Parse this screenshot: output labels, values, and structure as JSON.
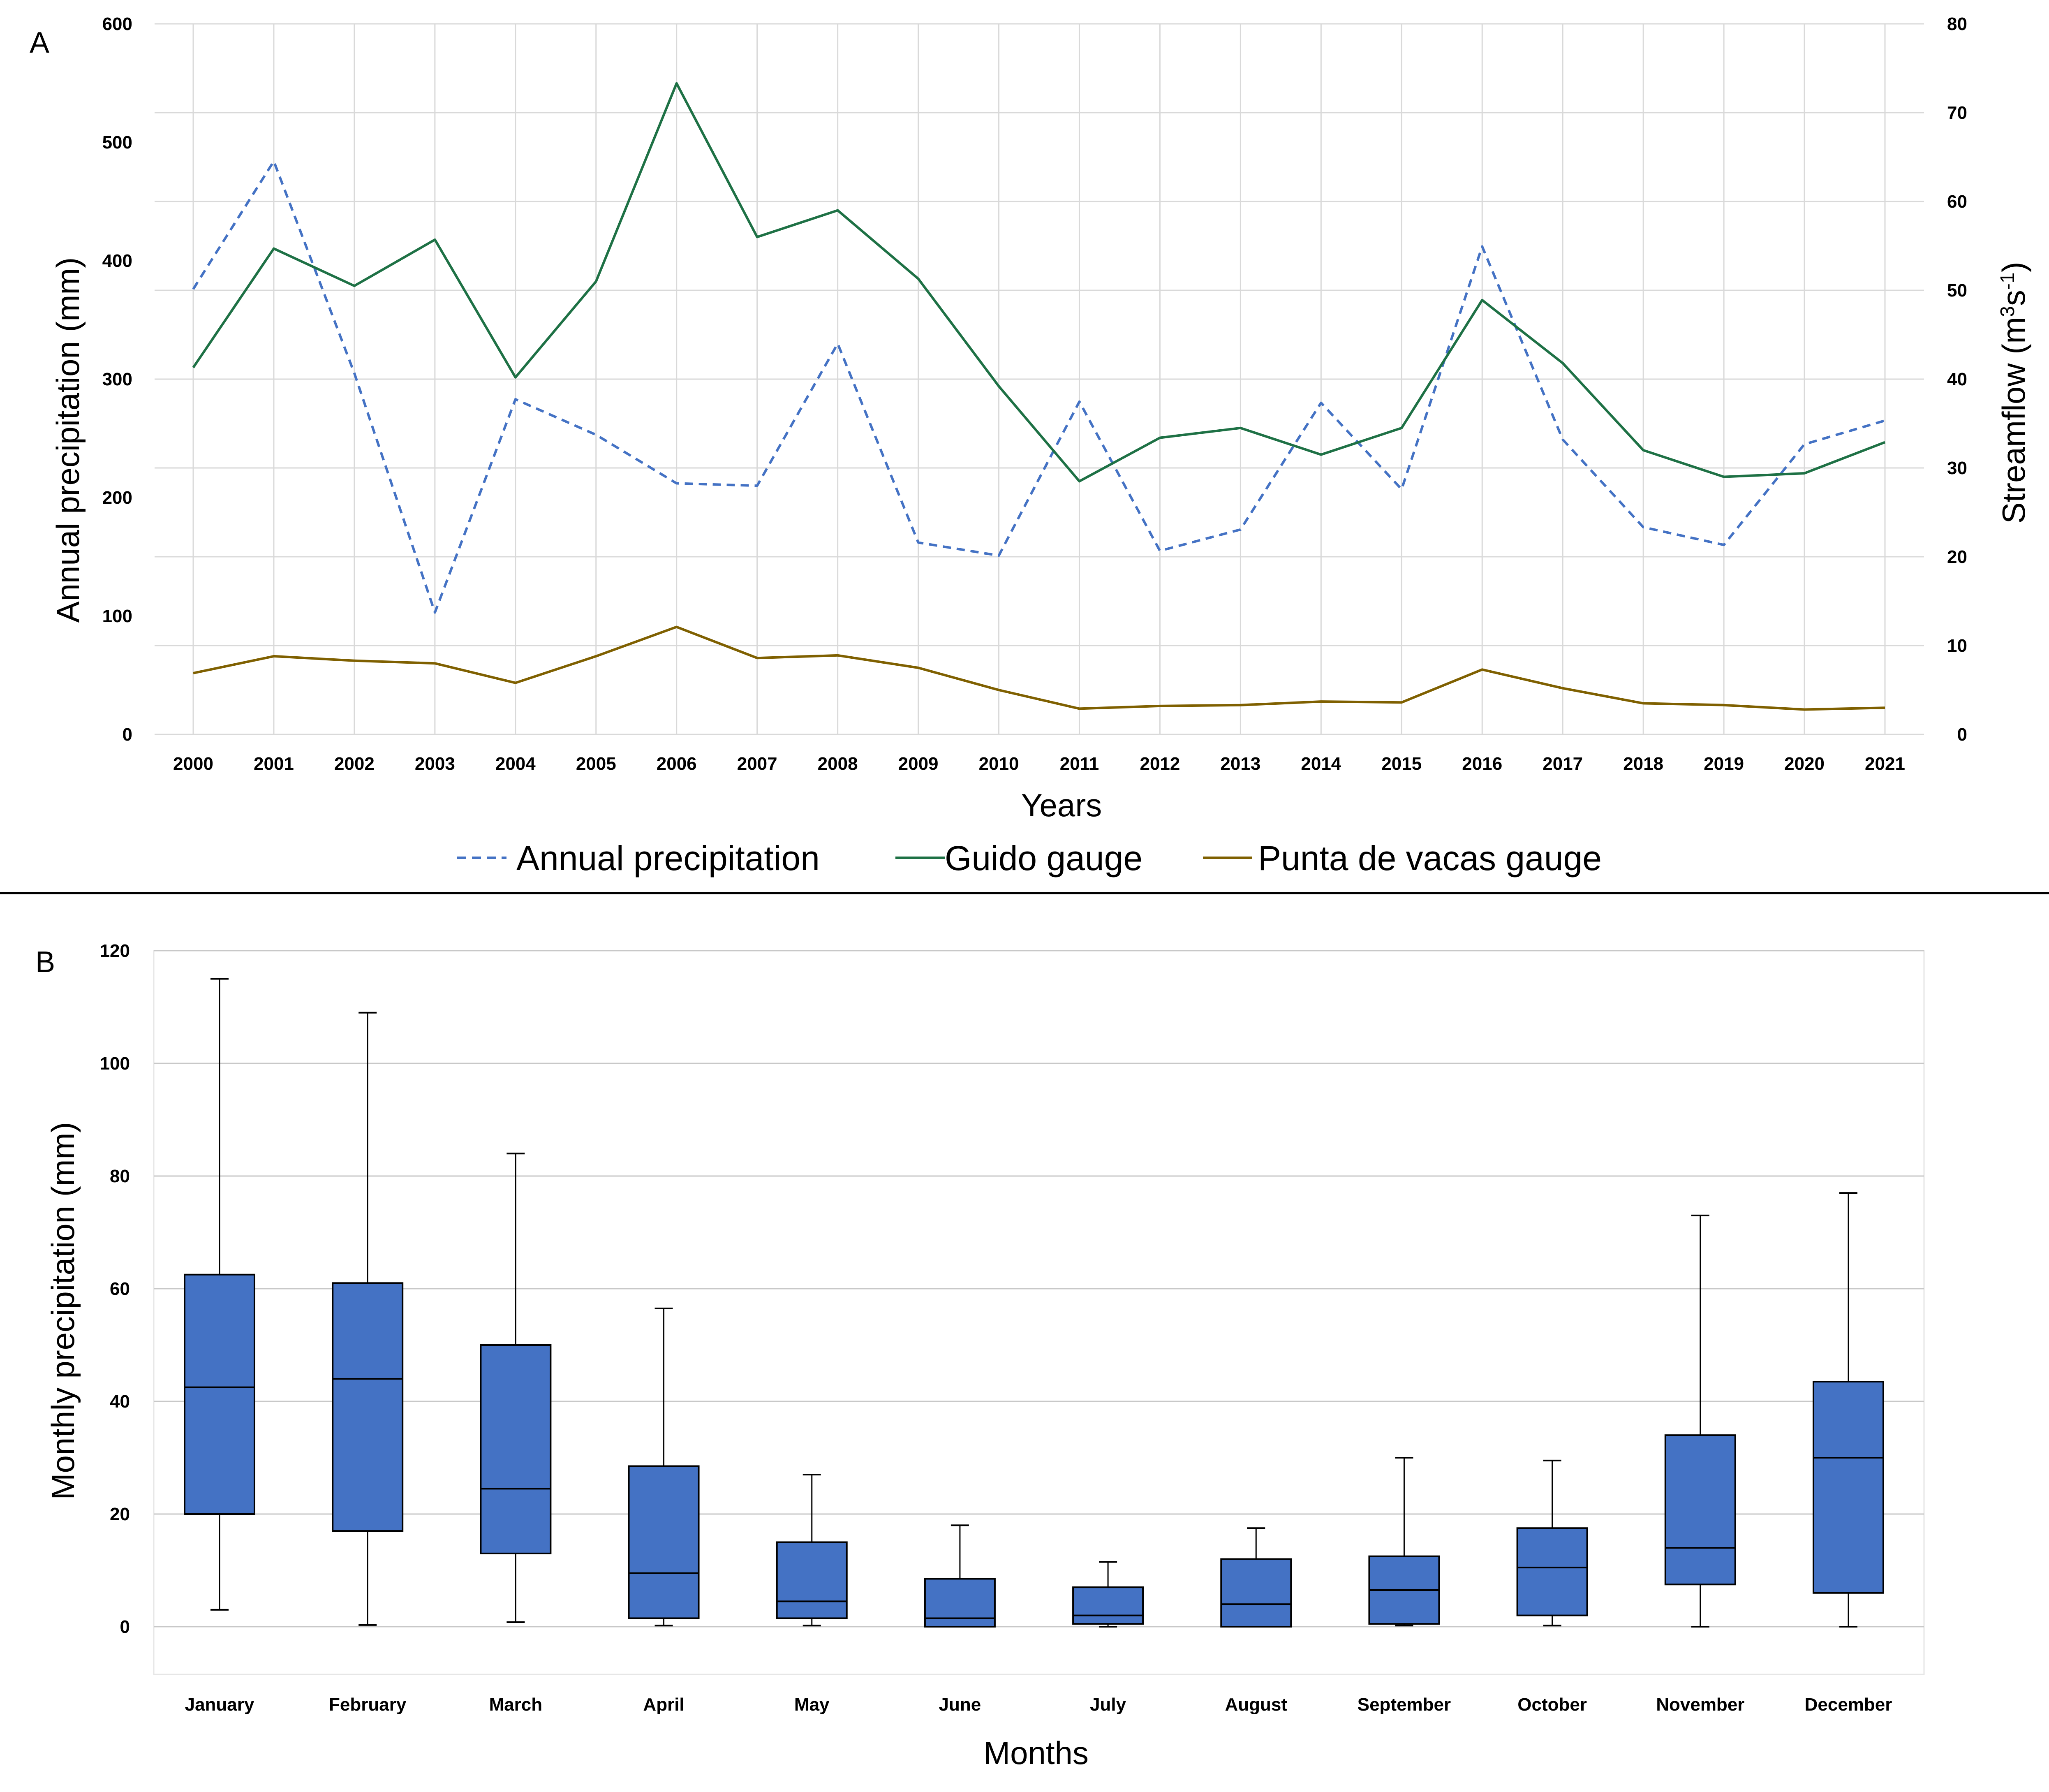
{
  "chart_data": [
    {
      "panel": "A",
      "type": "line",
      "x": [
        2000,
        2001,
        2002,
        2003,
        2004,
        2005,
        2006,
        2007,
        2008,
        2009,
        2010,
        2011,
        2012,
        2013,
        2014,
        2015,
        2016,
        2017,
        2018,
        2019,
        2020,
        2021
      ],
      "categories": [
        "2000",
        "2001",
        "2002",
        "2003",
        "2004",
        "2005",
        "2006",
        "2007",
        "2008",
        "2009",
        "2010",
        "2011",
        "2012",
        "2013",
        "2014",
        "2015",
        "2016",
        "2017",
        "2018",
        "2019",
        "2020",
        "2021"
      ],
      "xlabel": "Years",
      "ylabel": "Annual precipitation (mm)",
      "ylabel_right_prefix": "Streamflow (m",
      "ylabel_right_sup1": "3",
      "ylabel_right_mid": "s",
      "ylabel_right_sup2": "-1",
      "ylabel_right_suffix": ")",
      "ylim": [
        0,
        600
      ],
      "ylim_right": [
        0,
        80
      ],
      "yticks": [
        "0",
        "100",
        "200",
        "300",
        "400",
        "500",
        "600"
      ],
      "yticks_right": [
        "0",
        "10",
        "20",
        "30",
        "40",
        "50",
        "60",
        "70",
        "80"
      ],
      "grid": true,
      "legend_position": "bottom",
      "series": [
        {
          "name": "Annual precipitation",
          "axis": "left",
          "style": "dashed",
          "color": "#4472c4",
          "values": [
            376,
            484,
            305,
            103,
            283,
            253,
            212,
            210,
            330,
            162,
            151,
            281,
            155,
            173,
            280,
            207,
            412,
            249,
            175,
            160,
            245,
            265
          ]
        },
        {
          "name": "Guido gauge",
          "axis": "right",
          "style": "solid",
          "color": "#1e7145",
          "values": [
            41.3,
            54.7,
            50.5,
            55.7,
            40.2,
            51.0,
            73.3,
            56.0,
            59.0,
            51.3,
            39.2,
            28.5,
            33.4,
            34.5,
            31.5,
            34.5,
            48.9,
            41.8,
            32.0,
            29.0,
            29.4,
            32.9
          ]
        },
        {
          "name": "Punta de vacas gauge",
          "axis": "right",
          "style": "solid",
          "color": "#7f6000",
          "values": [
            6.9,
            8.8,
            8.3,
            8.0,
            5.8,
            8.8,
            12.1,
            8.6,
            8.9,
            7.5,
            5.0,
            2.9,
            3.2,
            3.3,
            3.7,
            3.6,
            7.3,
            5.2,
            3.5,
            3.3,
            2.8,
            3.0
          ]
        }
      ]
    },
    {
      "panel": "B",
      "type": "box",
      "categories": [
        "January",
        "February",
        "March",
        "April",
        "May",
        "June",
        "July",
        "August",
        "September",
        "October",
        "November",
        "December"
      ],
      "xlabel": "Months",
      "ylabel": "Monthly precipitation (mm)",
      "ylim": [
        -8,
        120
      ],
      "yticks": [
        "0",
        "20",
        "40",
        "60",
        "80",
        "100",
        "120"
      ],
      "grid": true,
      "box_color": "#4472c4",
      "boxes": [
        {
          "min": 3,
          "q1": 20,
          "median": 42.5,
          "q3": 62.5,
          "max": 115
        },
        {
          "min": 0.3,
          "q1": 17,
          "median": 44,
          "q3": 61,
          "max": 109
        },
        {
          "min": 0.8,
          "q1": 13,
          "median": 24.5,
          "q3": 50,
          "max": 84
        },
        {
          "min": 0.2,
          "q1": 1.5,
          "median": 9.5,
          "q3": 28.5,
          "max": 56.5
        },
        {
          "min": 0.2,
          "q1": 1.5,
          "median": 4.5,
          "q3": 15,
          "max": 27
        },
        {
          "min": 0,
          "q1": 0,
          "median": 1.5,
          "q3": 8.5,
          "max": 18
        },
        {
          "min": 0,
          "q1": 0.5,
          "median": 2,
          "q3": 7,
          "max": 11.5
        },
        {
          "min": 0,
          "q1": 0,
          "median": 4,
          "q3": 12,
          "max": 17.5
        },
        {
          "min": 0.2,
          "q1": 0.5,
          "median": 6.5,
          "q3": 12.5,
          "max": 30
        },
        {
          "min": 0.2,
          "q1": 2,
          "median": 10.5,
          "q3": 17.5,
          "max": 29.5
        },
        {
          "min": 0,
          "q1": 7.5,
          "median": 14,
          "q3": 34,
          "max": 73
        },
        {
          "min": 0,
          "q1": 6,
          "median": 30,
          "q3": 43.5,
          "max": 77
        }
      ]
    }
  ]
}
